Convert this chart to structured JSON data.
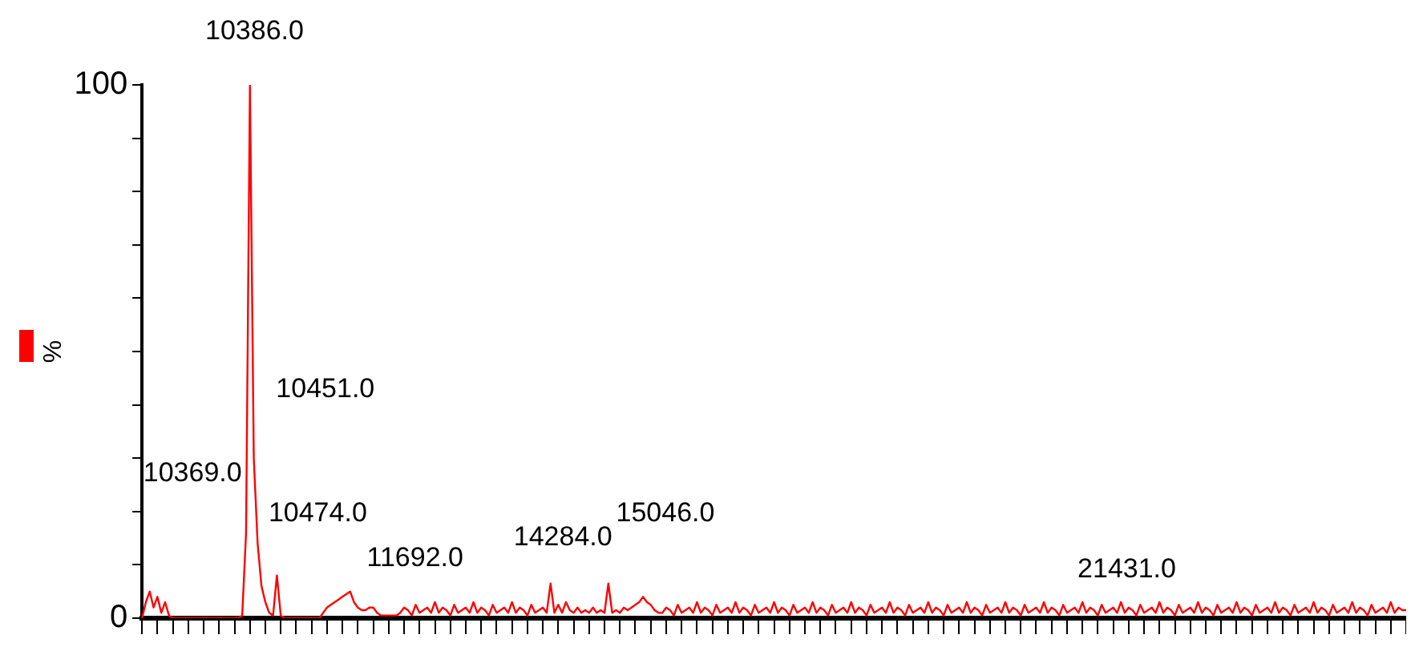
{
  "chart_data": {
    "type": "line",
    "ylabel": "%",
    "ylim": [
      0,
      100
    ],
    "yticks": [
      0,
      {
        "value": 10,
        "label": null
      },
      {
        "value": 20,
        "label": null
      },
      {
        "value": 30,
        "label": null
      },
      {
        "value": 40,
        "label": null
      },
      {
        "value": 50,
        "label": null
      },
      {
        "value": 60,
        "label": null
      },
      {
        "value": 70,
        "label": null
      },
      {
        "value": 80,
        "label": null
      },
      {
        "value": 90,
        "label": null
      },
      100
    ],
    "tick_labels": "y",
    "grid": false,
    "legend": false,
    "marker": "none",
    "categories": [
      null,
      null,
      null,
      null,
      null,
      null,
      null,
      null,
      null,
      null,
      null,
      null,
      null,
      null,
      null,
      null,
      null,
      null,
      null,
      null,
      null,
      null,
      null,
      null,
      null,
      null,
      null,
      null,
      null,
      null,
      null,
      null,
      null,
      null,
      null,
      null,
      null,
      null,
      null,
      null,
      null,
      null,
      null,
      null,
      null,
      null,
      null,
      null,
      null,
      null,
      null,
      null,
      null,
      null,
      null,
      null,
      null,
      null,
      null,
      null,
      null,
      null,
      null,
      null,
      null,
      null,
      null,
      null,
      null,
      null,
      null,
      null,
      null,
      null,
      null,
      null,
      null,
      null,
      null,
      null,
      null,
      null,
      null,
      null,
      null,
      null,
      null,
      null,
      null,
      null,
      null,
      null,
      null,
      null,
      null,
      null,
      null,
      null,
      null,
      null,
      null,
      null,
      null,
      null,
      null,
      null,
      null,
      null,
      null,
      null,
      null,
      null,
      null,
      null,
      null,
      null,
      null,
      null,
      null,
      null,
      null,
      null,
      null,
      null,
      null,
      null,
      null,
      null,
      null,
      null,
      null,
      null,
      null,
      null,
      null,
      null,
      null,
      null,
      null,
      null,
      null,
      null,
      null,
      null,
      null,
      null,
      null,
      null,
      null,
      null,
      null,
      null,
      null,
      null,
      null,
      null,
      null,
      null,
      null,
      null,
      null,
      null,
      null,
      null,
      null,
      null,
      null,
      null,
      null,
      null,
      null,
      null,
      null,
      null,
      null,
      null,
      null,
      null,
      null,
      null,
      null,
      null,
      null,
      null,
      null,
      null,
      null,
      null,
      null,
      null,
      null,
      null,
      null,
      null,
      null,
      null,
      null,
      null,
      null,
      null,
      null,
      null,
      null,
      null,
      null,
      null,
      null,
      null,
      null,
      null,
      null,
      null,
      null,
      null,
      null,
      null,
      null,
      null,
      null,
      null,
      null,
      null,
      null,
      null,
      null,
      null,
      null,
      null,
      null,
      null,
      null,
      null,
      null,
      null,
      null,
      null,
      null,
      null,
      null,
      null,
      null,
      null,
      null,
      null,
      null,
      null,
      null,
      null,
      null,
      null,
      null,
      null,
      null,
      null,
      null,
      null,
      null,
      null,
      null,
      null,
      null,
      null,
      null,
      null,
      null,
      null,
      null,
      null,
      null,
      null,
      null,
      null,
      null,
      null,
      null,
      null,
      null,
      null,
      null,
      null,
      null,
      null,
      null,
      null,
      null,
      null,
      null,
      null,
      null,
      null,
      null,
      null,
      null,
      null,
      null,
      null,
      null,
      null,
      null,
      null,
      null,
      null,
      null,
      null,
      null,
      null,
      null,
      null,
      null,
      null,
      null,
      null,
      null,
      null,
      null,
      null,
      null,
      null,
      null,
      null,
      null,
      null,
      null,
      null,
      null,
      null,
      null,
      null,
      null
    ],
    "series": [
      {
        "color": "#ff0000",
        "values": [
          0,
          3,
          5,
          2,
          4,
          1,
          3,
          0.5,
          0,
          0,
          0,
          0,
          0,
          0,
          0,
          0,
          0,
          0,
          0,
          0,
          0,
          0,
          0,
          0,
          0,
          0,
          0.5,
          16,
          100,
          30,
          14,
          6,
          3,
          1,
          0.5,
          8,
          0.5,
          0,
          0,
          0,
          0,
          0,
          0,
          0,
          0,
          0,
          0,
          1,
          2,
          2.5,
          3,
          3.5,
          4,
          4.5,
          5,
          3,
          2,
          1.5,
          1.5,
          2,
          2,
          1,
          0.5,
          0.5,
          0.5,
          0.5,
          0.5,
          1,
          2,
          1.5,
          0.5,
          2.5,
          1,
          1.5,
          2,
          1,
          3,
          1,
          2,
          1.5,
          0.5,
          2.5,
          1,
          1.5,
          2,
          1,
          3,
          1,
          2,
          1.5,
          0.5,
          2.5,
          1,
          1.5,
          2,
          1,
          3,
          1,
          2,
          1.5,
          0.5,
          2.5,
          1,
          1.5,
          2,
          1,
          6.5,
          1,
          2.5,
          1,
          3,
          1.5,
          1,
          2,
          1,
          1.5,
          1,
          2,
          1,
          1.5,
          1,
          6.5,
          1,
          1.5,
          1,
          2,
          1.5,
          2,
          2.5,
          3,
          4,
          3,
          2.5,
          1.5,
          1,
          1,
          2,
          1.5,
          0.5,
          2.5,
          1,
          1.5,
          2,
          1,
          3,
          1,
          2,
          1.5,
          0.5,
          2.5,
          1,
          1.5,
          2,
          1,
          3,
          1,
          2,
          1.5,
          0.5,
          2.5,
          1,
          1.5,
          2,
          1,
          3,
          1,
          2,
          1.5,
          0.5,
          2.5,
          1,
          1.5,
          2,
          1,
          3,
          1,
          2,
          1.5,
          0.5,
          2.5,
          1,
          1.5,
          2,
          1,
          3,
          1,
          2,
          1.5,
          0.5,
          2.5,
          1,
          1.5,
          2,
          1,
          3,
          1,
          2,
          1.5,
          0.5,
          2.5,
          1,
          1.5,
          2,
          1,
          3,
          1,
          2,
          1.5,
          0.5,
          2.5,
          1,
          1.5,
          2,
          1,
          3,
          1,
          2,
          1.5,
          0.5,
          2.5,
          1,
          1.5,
          2,
          1,
          3,
          1,
          2,
          1.5,
          0.5,
          2.5,
          1,
          1.5,
          2,
          1,
          3,
          1,
          2,
          1.5,
          0.5,
          2.5,
          1,
          1.5,
          2,
          1,
          3,
          1,
          2,
          1.5,
          0.5,
          2.5,
          1,
          1.5,
          2,
          1,
          3,
          1,
          2,
          1.5,
          0.5,
          2.5,
          1,
          1.5,
          2,
          1,
          3,
          1,
          2,
          1.5,
          0.5,
          2.5,
          1,
          1.5,
          2,
          1,
          3,
          1,
          2,
          1.5,
          0.5,
          2.5,
          1,
          1.5,
          2,
          1,
          3,
          1,
          2,
          1.5,
          0.5,
          2.5,
          1,
          1.5,
          2,
          1,
          3,
          1,
          2,
          1.5,
          0.5,
          2.5,
          1,
          1.5,
          2,
          1,
          3,
          1,
          2,
          1.5,
          0.5,
          2.5,
          1,
          1.5,
          2,
          1,
          3,
          1,
          2,
          1.5,
          0.5,
          2.5,
          1,
          1.5,
          2,
          1,
          3,
          1,
          2,
          1.5,
          1.5
        ]
      }
    ],
    "annotations": [
      "10386.0",
      "10451.0",
      "10369.0",
      "10474.0",
      "11692.0",
      "14284.0",
      "15046.0",
      "21431.0"
    ]
  }
}
